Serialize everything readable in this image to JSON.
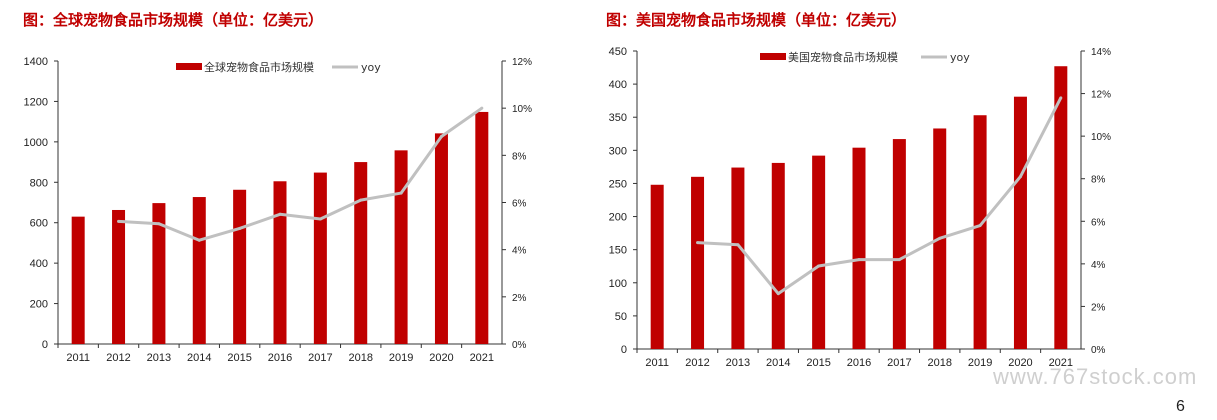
{
  "panels": {
    "left": {
      "title": "图：全球宠物食品市场规模（单位：亿美元）"
    },
    "right": {
      "title": "图：美国宠物食品市场规模（单位：亿美元）"
    }
  },
  "colors": {
    "bar": "#c00000",
    "line": "#c0c0c0",
    "title": "#c00000"
  },
  "watermark": "www.767stock.com",
  "page_number": "6",
  "chart_data": [
    {
      "type": "bar",
      "combo_line": true,
      "categories": [
        "2011",
        "2012",
        "2013",
        "2014",
        "2015",
        "2016",
        "2017",
        "2018",
        "2019",
        "2020",
        "2021"
      ],
      "series": [
        {
          "name": "全球宠物食品市场规模",
          "type": "bar",
          "axis": "left",
          "values": [
            630,
            663,
            697,
            727,
            763,
            805,
            848,
            900,
            958,
            1042,
            1148
          ]
        },
        {
          "name": "yoy",
          "type": "line",
          "axis": "right",
          "values": [
            null,
            5.2,
            5.1,
            4.4,
            4.9,
            5.5,
            5.3,
            6.1,
            6.4,
            8.8,
            10.0
          ]
        }
      ],
      "ylim_left": [
        0,
        1400
      ],
      "yticks_left": [
        "0",
        "200",
        "400",
        "600",
        "800",
        "1000",
        "1200",
        "1400"
      ],
      "ylim_right": [
        0,
        12
      ],
      "yticks_right": [
        "0%",
        "2%",
        "4%",
        "6%",
        "8%",
        "10%",
        "12%"
      ],
      "legend": "top-center",
      "grid": false
    },
    {
      "type": "bar",
      "combo_line": true,
      "categories": [
        "2011",
        "2012",
        "2013",
        "2014",
        "2015",
        "2016",
        "2017",
        "2018",
        "2019",
        "2020",
        "2021"
      ],
      "series": [
        {
          "name": "美国宠物食品市场规模",
          "type": "bar",
          "axis": "left",
          "values": [
            248,
            260,
            274,
            281,
            292,
            304,
            317,
            333,
            353,
            381,
            427
          ]
        },
        {
          "name": "yoy",
          "type": "line",
          "axis": "right",
          "values": [
            null,
            5.0,
            4.9,
            2.6,
            3.9,
            4.2,
            4.2,
            5.2,
            5.8,
            8.1,
            11.8
          ]
        }
      ],
      "ylim_left": [
        0,
        450
      ],
      "yticks_left": [
        "0",
        "50",
        "100",
        "150",
        "200",
        "250",
        "300",
        "350",
        "400",
        "450"
      ],
      "ylim_right": [
        0,
        14
      ],
      "yticks_right": [
        "0%",
        "2%",
        "4%",
        "6%",
        "8%",
        "10%",
        "12%",
        "14%"
      ],
      "legend": "top-center",
      "grid": false
    }
  ]
}
